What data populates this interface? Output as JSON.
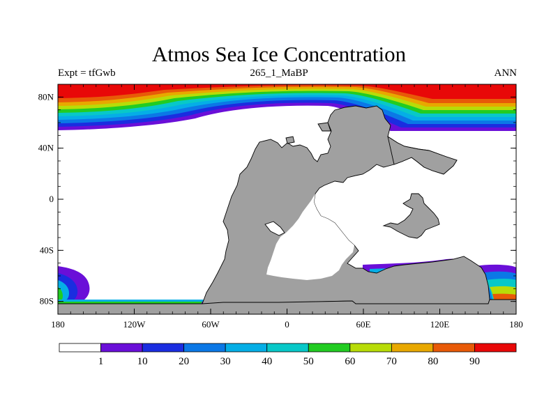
{
  "title": "Atmos Sea Ice Concentration",
  "subtitle_left": "Expt = tfGwb",
  "subtitle_center": "265_1_MaBP",
  "subtitle_right": "ANN",
  "x_ticks": [
    "180",
    "120W",
    "60W",
    "0",
    "60E",
    "120E",
    "180"
  ],
  "y_ticks": [
    "80N",
    "40N",
    "0",
    "40S",
    "80S"
  ],
  "colorbar_labels": [
    "1",
    "10",
    "20",
    "30",
    "40",
    "50",
    "60",
    "70",
    "80",
    "90"
  ],
  "colorbar_colors": [
    "#ffffff",
    "#6a0fd8",
    "#1a2de0",
    "#0b78e6",
    "#05aee6",
    "#08c8c8",
    "#22cc22",
    "#b8dc08",
    "#e8a800",
    "#e85a08",
    "#e80808"
  ],
  "land_color": "#a0a0a0"
}
